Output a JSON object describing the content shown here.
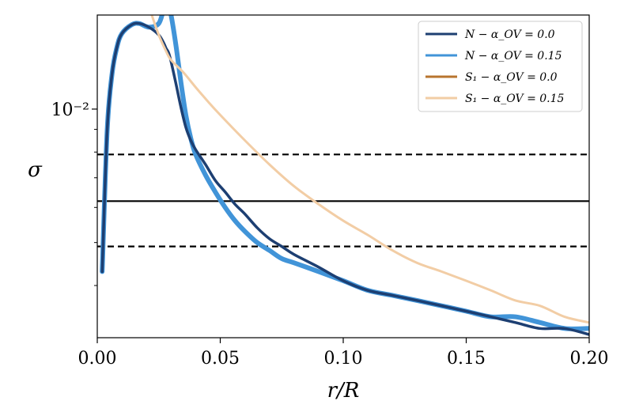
{
  "chart_data": {
    "type": "line",
    "xlabel": "r/R",
    "ylabel": "σ",
    "xlim": [
      0.0,
      0.2
    ],
    "ylim": [
      0.00305,
      0.0163
    ],
    "yscale": "log",
    "grid": false,
    "legend_position": "top-right",
    "x_ticks": [
      {
        "value": 0.0,
        "label": "0.00"
      },
      {
        "value": 0.05,
        "label": "0.05"
      },
      {
        "value": 0.1,
        "label": "0.10"
      },
      {
        "value": 0.15,
        "label": "0.15"
      },
      {
        "value": 0.2,
        "label": "0.20"
      }
    ],
    "y_ticks": [
      {
        "value": 0.01,
        "label": "10⁻²"
      }
    ],
    "hlines": [
      {
        "name": "",
        "y": 0.0062,
        "style": "solid",
        "color": "#000000"
      },
      {
        "name": "",
        "y": 0.0079,
        "style": "dashed",
        "color": "#000000"
      },
      {
        "name": "",
        "y": 0.0049,
        "style": "dashed",
        "color": "#000000"
      }
    ],
    "series": [
      {
        "name": "N − α_OV = 0.0",
        "color": "#1d3f72",
        "width": 3.5,
        "x": [
          0.002,
          0.004,
          0.006,
          0.008,
          0.01,
          0.014,
          0.017,
          0.021,
          0.025,
          0.027,
          0.028,
          0.029,
          0.03,
          0.032,
          0.034,
          0.036,
          0.038,
          0.04,
          0.044,
          0.048,
          0.052,
          0.056,
          0.06,
          0.065,
          0.07,
          0.075,
          0.08,
          0.09,
          0.1,
          0.11,
          0.12,
          0.13,
          0.14,
          0.15,
          0.16,
          0.17,
          0.18,
          0.19,
          0.2
        ],
        "values": [
          0.0043,
          0.0089,
          0.012,
          0.0138,
          0.0148,
          0.0155,
          0.0156,
          0.0153,
          0.0147,
          0.0141,
          0.0137,
          0.0134,
          0.0128,
          0.0114,
          0.0101,
          0.0091,
          0.0085,
          0.0081,
          0.0075,
          0.0069,
          0.0065,
          0.0061,
          0.0058,
          0.0054,
          0.0051,
          0.0049,
          0.0047,
          0.0044,
          0.0041,
          0.0039,
          0.0038,
          0.0037,
          0.0036,
          0.0035,
          0.0034,
          0.0033,
          0.0032,
          0.0032,
          0.0031
        ]
      },
      {
        "name": "N − α_OV = 0.15",
        "color": "#4194d8",
        "width": 6,
        "x": [
          0.002,
          0.004,
          0.006,
          0.008,
          0.01,
          0.014,
          0.017,
          0.021,
          0.025,
          0.027,
          0.028,
          0.029,
          0.03,
          0.032,
          0.034,
          0.036,
          0.038,
          0.04,
          0.044,
          0.048,
          0.052,
          0.056,
          0.06,
          0.065,
          0.07,
          0.075,
          0.08,
          0.09,
          0.1,
          0.11,
          0.12,
          0.13,
          0.14,
          0.15,
          0.16,
          0.17,
          0.18,
          0.19,
          0.2
        ],
        "values": [
          0.0043,
          0.0089,
          0.012,
          0.0138,
          0.0148,
          0.0155,
          0.0156,
          0.0153,
          0.0156,
          0.0168,
          0.0171,
          0.017,
          0.0163,
          0.0139,
          0.0115,
          0.0097,
          0.0086,
          0.0079,
          0.0071,
          0.0065,
          0.006,
          0.0056,
          0.0053,
          0.005,
          0.0048,
          0.0046,
          0.0045,
          0.0043,
          0.0041,
          0.0039,
          0.0038,
          0.0037,
          0.0036,
          0.0035,
          0.0034,
          0.0034,
          0.0033,
          0.0032,
          0.0032
        ]
      },
      {
        "name": "S₁ − α_OV = 0.0",
        "color": "#b8742e",
        "width": 2,
        "x": [
          0.019,
          0.022,
          0.025,
          0.028,
          0.03,
          0.035,
          0.04,
          0.045,
          0.05,
          0.06,
          0.07,
          0.08,
          0.09,
          0.1,
          0.11,
          0.12,
          0.13,
          0.14,
          0.15,
          0.16,
          0.17,
          0.18,
          0.19,
          0.2
        ],
        "values": [
          0.0185,
          0.0164,
          0.0147,
          0.0135,
          0.0129,
          0.0121,
          0.0112,
          0.0104,
          0.0097,
          0.0085,
          0.0075,
          0.0067,
          0.0061,
          0.0056,
          0.0052,
          0.0048,
          0.0045,
          0.0043,
          0.0041,
          0.0039,
          0.0037,
          0.0036,
          0.0034,
          0.0033
        ]
      },
      {
        "name": "S₁ − α_OV = 0.15",
        "color": "#f2cda5",
        "width": 3,
        "x": [
          0.019,
          0.022,
          0.025,
          0.028,
          0.03,
          0.035,
          0.04,
          0.045,
          0.05,
          0.06,
          0.07,
          0.08,
          0.09,
          0.1,
          0.11,
          0.12,
          0.13,
          0.14,
          0.15,
          0.16,
          0.17,
          0.18,
          0.19,
          0.2
        ],
        "values": [
          0.0185,
          0.0164,
          0.0147,
          0.0135,
          0.0129,
          0.0121,
          0.0112,
          0.0104,
          0.0097,
          0.0085,
          0.0075,
          0.0067,
          0.0061,
          0.0056,
          0.0052,
          0.0048,
          0.0045,
          0.0043,
          0.0041,
          0.0039,
          0.0037,
          0.0036,
          0.0034,
          0.0033
        ]
      }
    ]
  }
}
